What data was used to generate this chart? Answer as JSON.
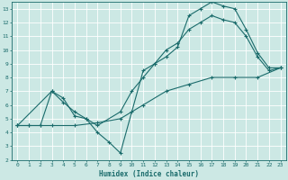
{
  "xlabel": "Humidex (Indice chaleur)",
  "bg_color": "#cce8e4",
  "grid_color": "#ffffff",
  "line_color": "#1a6b6b",
  "xlim": [
    -0.5,
    23.5
  ],
  "ylim": [
    2,
    13.5
  ],
  "xticks": [
    0,
    1,
    2,
    3,
    4,
    5,
    6,
    7,
    8,
    9,
    10,
    11,
    12,
    13,
    14,
    15,
    16,
    17,
    18,
    19,
    20,
    21,
    22,
    23
  ],
  "yticks": [
    2,
    3,
    4,
    5,
    6,
    7,
    8,
    9,
    10,
    11,
    12,
    13
  ],
  "line1_x": [
    0,
    1,
    2,
    3,
    4,
    5,
    6,
    7,
    8,
    9,
    10,
    11,
    12,
    13,
    14,
    15,
    16,
    17,
    18,
    19,
    20,
    21,
    22,
    23
  ],
  "line1_y": [
    4.5,
    4.5,
    4.5,
    7.0,
    6.5,
    5.2,
    5.0,
    4.0,
    3.3,
    2.5,
    5.5,
    8.5,
    9.0,
    9.5,
    10.2,
    12.5,
    13.0,
    13.5,
    13.2,
    13.0,
    11.5,
    9.8,
    8.7,
    8.7
  ],
  "line2_x": [
    0,
    3,
    4,
    5,
    6,
    7,
    9,
    10,
    11,
    12,
    13,
    14,
    15,
    16,
    17,
    18,
    19,
    20,
    21,
    22,
    23
  ],
  "line2_y": [
    4.5,
    7.0,
    6.2,
    5.5,
    5.0,
    4.5,
    5.5,
    7.0,
    8.0,
    9.0,
    10.0,
    10.5,
    11.5,
    12.0,
    12.5,
    12.2,
    12.0,
    11.0,
    9.5,
    8.5,
    8.7
  ],
  "line3_x": [
    0,
    1,
    2,
    3,
    5,
    7,
    9,
    11,
    13,
    15,
    17,
    19,
    21,
    23
  ],
  "line3_y": [
    4.5,
    4.5,
    4.5,
    4.5,
    4.5,
    4.7,
    5.0,
    6.0,
    7.0,
    7.5,
    8.0,
    8.0,
    8.0,
    8.7
  ]
}
